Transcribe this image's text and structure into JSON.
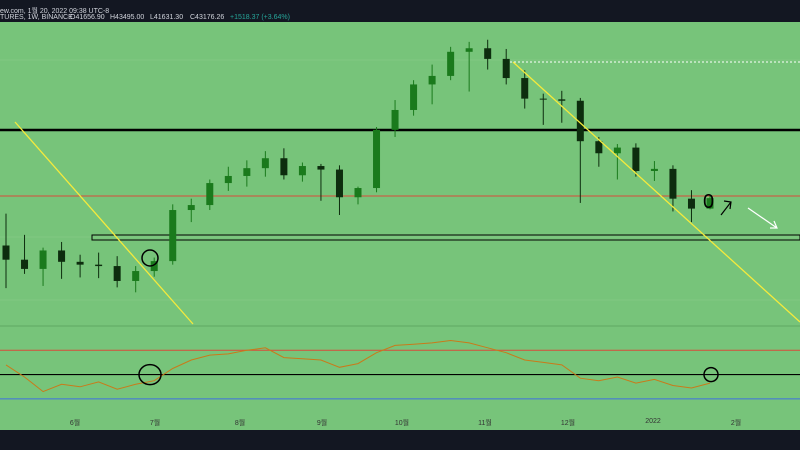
{
  "header": {
    "site": "ew.com, 1월 20, 2022 09:38 UTC-8",
    "symbol": "TURES, 1W, BINANCE",
    "open": "41656.90",
    "high": "43495.00",
    "low": "41631.30",
    "close": "43176.26",
    "change": "+1518.37 (+3.64%)"
  },
  "colors": {
    "plot_bg": "#77c47a",
    "bull": "#1a7a1c",
    "bear": "#0d2d0e",
    "trendline": "#f5ea3c",
    "resistance": "#d94b3a",
    "rsi": "#c97a1a",
    "lower_band": "#3e6fe0",
    "frame": "#131722"
  },
  "chart_data": {
    "type": "candlestick",
    "title": "",
    "xlabel": "",
    "ylabel": "",
    "x_ticks": [
      "6월",
      "7월",
      "8월",
      "9월",
      "10월",
      "11월",
      "12월",
      "2022",
      "2월"
    ],
    "price_series": [
      [
        36500,
        41000,
        30500,
        34500
      ],
      [
        34500,
        38000,
        32500,
        33200
      ],
      [
        33200,
        36200,
        30800,
        35800
      ],
      [
        35800,
        37000,
        31800,
        34200
      ],
      [
        34200,
        35200,
        32000,
        33800
      ],
      [
        33800,
        35500,
        31900,
        33600
      ],
      [
        33600,
        35000,
        30600,
        31500
      ],
      [
        31500,
        33600,
        29900,
        32900
      ],
      [
        32900,
        34800,
        32100,
        34300
      ],
      [
        34300,
        42300,
        33800,
        41500
      ],
      [
        41500,
        43100,
        39800,
        42200
      ],
      [
        42200,
        45800,
        41500,
        45300
      ],
      [
        45300,
        47600,
        44200,
        46300
      ],
      [
        46300,
        48500,
        44800,
        47400
      ],
      [
        47400,
        49800,
        46200,
        48800
      ],
      [
        48800,
        50200,
        45800,
        46400
      ],
      [
        46400,
        48200,
        45500,
        47700
      ],
      [
        47700,
        48000,
        42800,
        47200
      ],
      [
        47200,
        47800,
        40800,
        43300
      ],
      [
        43300,
        44800,
        42300,
        44600
      ],
      [
        44600,
        53200,
        44000,
        52800
      ],
      [
        52800,
        57000,
        51800,
        55600
      ],
      [
        55600,
        59800,
        54800,
        59200
      ],
      [
        59200,
        62000,
        56400,
        60400
      ],
      [
        60400,
        64500,
        59800,
        63800
      ],
      [
        63800,
        65200,
        58200,
        64300
      ],
      [
        64300,
        65500,
        61300,
        62800
      ],
      [
        62800,
        64200,
        59200,
        60100
      ],
      [
        60100,
        61200,
        55800,
        57200
      ],
      [
        57200,
        57900,
        53500,
        57100
      ],
      [
        57100,
        58300,
        53800,
        56900
      ],
      [
        56900,
        57300,
        42500,
        51200
      ],
      [
        51200,
        51800,
        47600,
        49500
      ],
      [
        49500,
        50800,
        45800,
        50300
      ],
      [
        50300,
        50900,
        46200,
        47000
      ],
      [
        47000,
        48400,
        45600,
        47300
      ],
      [
        47300,
        47800,
        41300,
        43100
      ],
      [
        43100,
        44300,
        39800,
        41700
      ],
      [
        41700,
        43500,
        41600,
        43176
      ]
    ],
    "rsi_series": [
      58,
      48,
      36,
      42,
      40,
      44,
      38,
      42,
      45,
      55,
      62,
      66,
      67,
      70,
      72,
      64,
      63,
      62,
      56,
      59,
      68,
      74,
      75,
      76,
      78,
      76,
      72,
      68,
      62,
      60,
      58,
      47,
      45,
      48,
      43,
      46,
      41,
      39,
      43
    ],
    "annotations": {
      "circle_labels": [
        "0"
      ],
      "arrows": [
        "up-right",
        "down-right"
      ]
    }
  }
}
